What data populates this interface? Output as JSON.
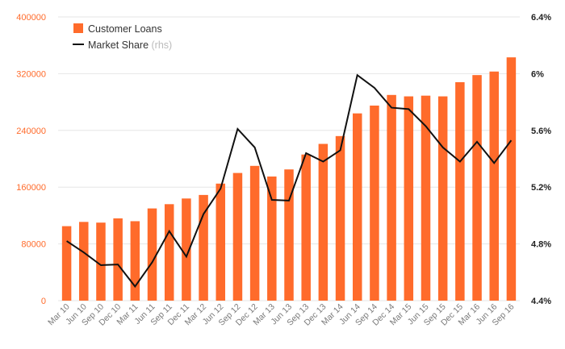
{
  "chart_data": {
    "type": "bar+line",
    "categories": [
      "Mar 10",
      "Jun 10",
      "Sep 10",
      "Dec 10",
      "Mar 11",
      "Jun 11",
      "Sep 11",
      "Dec 11",
      "Mar 12",
      "Jun 12",
      "Sep 12",
      "Dec 12",
      "Mar 13",
      "Jun 13",
      "Sep 13",
      "Dec 13",
      "Mar 14",
      "Jun 14",
      "Sep 14",
      "Dec 14",
      "Mar 15",
      "Jun 15",
      "Sep 15",
      "Dec 15",
      "Mar 16",
      "Jun 16",
      "Sep 16"
    ],
    "series": [
      {
        "name": "Customer Loans",
        "type": "bar",
        "axis": "left",
        "color": "#ff6b2b",
        "values": [
          105000,
          111000,
          110000,
          116000,
          112000,
          130000,
          136000,
          144000,
          149000,
          165000,
          180000,
          190000,
          175000,
          185000,
          206000,
          221000,
          232000,
          264000,
          275000,
          290000,
          288000,
          289000,
          288000,
          308000,
          318000,
          323000,
          343000
        ]
      },
      {
        "name": "Market Share",
        "type": "line",
        "axis": "right",
        "color": "#111111",
        "values": [
          4.82,
          4.74,
          4.65,
          4.655,
          4.5,
          4.67,
          4.89,
          4.71,
          5.01,
          5.19,
          5.61,
          5.48,
          5.11,
          5.105,
          5.44,
          5.38,
          5.46,
          5.99,
          5.9,
          5.76,
          5.75,
          5.63,
          5.48,
          5.38,
          5.52,
          5.37,
          5.53
        ]
      }
    ],
    "left_axis": {
      "min": 0,
      "max": 400000,
      "ticks": [
        "0",
        "80000",
        "160000",
        "240000",
        "320000",
        "400000"
      ]
    },
    "right_axis": {
      "min": 4.4,
      "max": 6.4,
      "ticks": [
        "4.4%",
        "4.8%",
        "5.2%",
        "5.6%",
        "6%",
        "6.4%"
      ]
    },
    "legend": {
      "position": "top-left",
      "items": [
        {
          "label": "Customer Loans",
          "note": "",
          "color": "#ff6b2b"
        },
        {
          "label": "Market Share",
          "note": "(rhs)",
          "color": "#111111"
        }
      ]
    },
    "grid": true,
    "colors": {
      "bar": "#ff6b2b",
      "line": "#111111",
      "grid": "#e6e6e6",
      "left_tick": "#ff6b2b",
      "right_tick": "#222222",
      "x_tick": "#7a7a7a"
    }
  }
}
